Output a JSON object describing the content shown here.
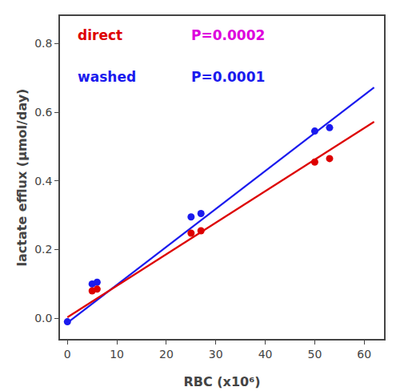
{
  "chart_data": {
    "type": "scatter",
    "xlabel": "RBC (x10⁶)",
    "ylabel": "lactate efflux (μmol/day)",
    "series": [
      {
        "type": "line",
        "color": "#1a1aee",
        "x": [
          0,
          62
        ],
        "values": [
          -0.013,
          0.672
        ]
      },
      {
        "type": "line",
        "color": "#dd0000",
        "x": [
          0,
          62
        ],
        "values": [
          0.003,
          0.572
        ]
      },
      {
        "type": "scatter",
        "marker": "circle",
        "color": "#1a1aee",
        "x": [
          0,
          5,
          6,
          25,
          27,
          50,
          53
        ],
        "values": [
          -0.01,
          0.1,
          0.105,
          0.295,
          0.305,
          0.545,
          0.555
        ]
      },
      {
        "type": "scatter",
        "marker": "circle",
        "color": "#dd0000",
        "x": [
          5,
          6,
          25,
          27,
          50,
          53
        ],
        "values": [
          0.08,
          0.085,
          0.248,
          0.255,
          0.455,
          0.465
        ]
      }
    ],
    "annotations": [
      {
        "text": "direct",
        "color": "#dd0000"
      },
      {
        "text": "P=0.0002",
        "color": "#dd00dd"
      },
      {
        "text": "washed",
        "color": "#1a1aee"
      },
      {
        "text": "P=0.0001",
        "color": "#1a1aee"
      }
    ],
    "xlim": [
      -1.5,
      64
    ],
    "ylim": [
      -0.06,
      0.88
    ],
    "xticks": [
      0,
      10,
      20,
      30,
      40,
      50,
      60
    ],
    "yticks": [
      {
        "value": 0.0,
        "label": "0.0"
      },
      0.2,
      0.4,
      0.6,
      0.8
    ],
    "grid": false
  }
}
